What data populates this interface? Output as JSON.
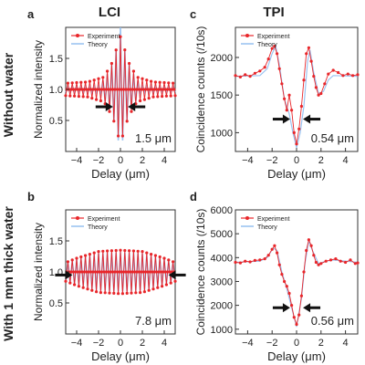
{
  "figure": {
    "columns": [
      {
        "title": "LCI"
      },
      {
        "title": "TPI"
      }
    ],
    "rows": [
      {
        "label": "Without water"
      },
      {
        "label": "With 1 mm thick water"
      }
    ]
  },
  "colors": {
    "experiment": "#e8262a",
    "theory": "#8fbcef",
    "arrow": "#111111"
  },
  "chart_data": [
    {
      "panel": "a",
      "type": "line",
      "xlabel": "Delay (μm)",
      "ylabel": "Normalized intensity",
      "xlim": [
        -5,
        5
      ],
      "ylim": [
        0,
        2
      ],
      "xticks": [
        -4,
        -2,
        0,
        2,
        4
      ],
      "yticks": [
        0.5,
        1.0,
        1.5
      ],
      "ytick_labels": [
        "0.5",
        "1.0",
        "1.5"
      ],
      "legend": [
        "Experiment",
        "Theory"
      ],
      "legend_position": "top-left",
      "annotation": "1.5 μm",
      "x_step": 0.1,
      "fringe_period": 0.4,
      "series": [
        {
          "name": "Experiment",
          "x": [
            -5,
            5
          ],
          "envelope": [
            [
              -5,
              0.1
            ],
            [
              -3,
              0.12
            ],
            [
              -1.5,
              0.2
            ],
            [
              -0.7,
              0.45
            ],
            [
              -0.3,
              0.7
            ],
            [
              0,
              0.85
            ],
            [
              0.3,
              0.7
            ],
            [
              0.7,
              0.45
            ],
            [
              1.5,
              0.2
            ],
            [
              3,
              0.12
            ],
            [
              5,
              0.1
            ]
          ]
        },
        {
          "name": "Theory",
          "x": [
            -5,
            5
          ],
          "envelope": [
            [
              -5,
              0.05
            ],
            [
              -2,
              0.05
            ],
            [
              -1,
              0.3
            ],
            [
              -0.5,
              0.55
            ],
            [
              0,
              1.0
            ],
            [
              0.5,
              0.55
            ],
            [
              1,
              0.3
            ],
            [
              2,
              0.05
            ],
            [
              5,
              0.05
            ]
          ]
        }
      ],
      "arrows": {
        "left_x": -1.1,
        "right_x": 1.1,
        "y": 0.72
      }
    },
    {
      "panel": "b",
      "type": "line",
      "xlabel": "Delay (μm)",
      "ylabel": "Normalized intensity",
      "xlim": [
        -5,
        5
      ],
      "ylim": [
        0,
        2
      ],
      "xticks": [
        -4,
        -2,
        0,
        2,
        4
      ],
      "yticks": [
        0.5,
        1.0,
        1.5
      ],
      "ytick_labels": [
        "0.5",
        "1.0",
        "1.5"
      ],
      "legend": [
        "Experiment",
        "Theory"
      ],
      "legend_position": "top-left",
      "annotation": "7.8 μm",
      "x_step": 0.1,
      "fringe_period": 0.4,
      "series": [
        {
          "name": "Experiment",
          "x": [
            -5,
            5
          ],
          "envelope": [
            [
              -5,
              0.15
            ],
            [
              -4,
              0.22
            ],
            [
              -2,
              0.33
            ],
            [
              0,
              0.35
            ],
            [
              2,
              0.33
            ],
            [
              4,
              0.22
            ],
            [
              5,
              0.15
            ]
          ]
        },
        {
          "name": "Theory",
          "x": [
            -5,
            5
          ],
          "envelope": [
            [
              -5,
              0.15
            ],
            [
              -4,
              0.2
            ],
            [
              -2,
              0.3
            ],
            [
              0,
              0.32
            ],
            [
              2,
              0.3
            ],
            [
              4,
              0.2
            ],
            [
              5,
              0.15
            ]
          ]
        }
      ],
      "arrows": {
        "left_x": -4.8,
        "right_x": 4.8,
        "y": 0.95
      }
    },
    {
      "panel": "c",
      "type": "line",
      "xlabel": "Delay (μm)",
      "ylabel": "Coincidence counts (/10s)",
      "xlim": [
        -5,
        5
      ],
      "ylim": [
        750,
        2400
      ],
      "xticks": [
        -4,
        -2,
        0,
        2,
        4
      ],
      "yticks": [
        1000,
        1500,
        2000
      ],
      "ytick_labels": [
        "1000",
        "1500",
        "2000"
      ],
      "legend": [
        "Experiment",
        "Theory"
      ],
      "legend_position": "top-left",
      "annotation": "0.54 μm",
      "series": [
        {
          "name": "Experiment",
          "points": [
            [
              -5.0,
              1760
            ],
            [
              -4.6,
              1740
            ],
            [
              -4.2,
              1770
            ],
            [
              -3.8,
              1750
            ],
            [
              -3.4,
              1790
            ],
            [
              -3.0,
              1820
            ],
            [
              -2.6,
              1870
            ],
            [
              -2.3,
              1980
            ],
            [
              -2.0,
              2120
            ],
            [
              -1.8,
              2150
            ],
            [
              -1.6,
              2050
            ],
            [
              -1.4,
              1850
            ],
            [
              -1.2,
              1650
            ],
            [
              -1.0,
              1450
            ],
            [
              -0.8,
              1300
            ],
            [
              -0.6,
              1500
            ],
            [
              -0.4,
              1300
            ],
            [
              -0.2,
              1000
            ],
            [
              0.0,
              850
            ],
            [
              0.2,
              1050
            ],
            [
              0.4,
              1350
            ],
            [
              0.6,
              1700
            ],
            [
              0.8,
              2050
            ],
            [
              1.0,
              2130
            ],
            [
              1.2,
              1950
            ],
            [
              1.4,
              1750
            ],
            [
              1.6,
              1600
            ],
            [
              1.8,
              1500
            ],
            [
              2.0,
              1520
            ],
            [
              2.3,
              1650
            ],
            [
              2.6,
              1780
            ],
            [
              3.0,
              1830
            ],
            [
              3.4,
              1800
            ],
            [
              3.8,
              1760
            ],
            [
              4.2,
              1780
            ],
            [
              4.6,
              1760
            ],
            [
              5.0,
              1770
            ]
          ]
        },
        {
          "name": "Theory",
          "points": [
            [
              -5.0,
              1750
            ],
            [
              -3.0,
              1760
            ],
            [
              -2.4,
              1850
            ],
            [
              -2.0,
              2050
            ],
            [
              -1.7,
              2150
            ],
            [
              -1.4,
              1900
            ],
            [
              -1.0,
              1450
            ],
            [
              -0.6,
              1250
            ],
            [
              -0.3,
              1000
            ],
            [
              0.0,
              800
            ],
            [
              0.3,
              1000
            ],
            [
              0.6,
              1350
            ],
            [
              0.9,
              1950
            ],
            [
              1.1,
              2100
            ],
            [
              1.4,
              1800
            ],
            [
              1.8,
              1520
            ],
            [
              2.2,
              1550
            ],
            [
              2.6,
              1700
            ],
            [
              3.0,
              1760
            ],
            [
              5.0,
              1750
            ]
          ]
        }
      ],
      "arrows": {
        "left_x": -0.9,
        "right_x": 0.9,
        "y": 1180
      }
    },
    {
      "panel": "d",
      "type": "line",
      "xlabel": "Delay (μm)",
      "ylabel": "Coincidence counts (/10s)",
      "xlim": [
        -5,
        5
      ],
      "ylim": [
        800,
        6000
      ],
      "xticks": [
        -4,
        -2,
        0,
        2,
        4
      ],
      "yticks": [
        1000,
        2000,
        3000,
        4000,
        5000,
        6000
      ],
      "ytick_labels": [
        "1000",
        "2000",
        "3000",
        "4000",
        "5000",
        "6000"
      ],
      "legend": [
        "Experiment",
        "Theory"
      ],
      "legend_position": "top-left",
      "annotation": "0.56 μm",
      "series": [
        {
          "name": "Experiment",
          "points": [
            [
              -5.0,
              3800
            ],
            [
              -4.6,
              3780
            ],
            [
              -4.2,
              3850
            ],
            [
              -3.8,
              3820
            ],
            [
              -3.4,
              3880
            ],
            [
              -3.0,
              3900
            ],
            [
              -2.6,
              3950
            ],
            [
              -2.3,
              4100
            ],
            [
              -2.0,
              4350
            ],
            [
              -1.8,
              4500
            ],
            [
              -1.6,
              4200
            ],
            [
              -1.4,
              3700
            ],
            [
              -1.2,
              3300
            ],
            [
              -1.0,
              3000
            ],
            [
              -0.8,
              2800
            ],
            [
              -0.6,
              2500
            ],
            [
              -0.4,
              2000
            ],
            [
              -0.2,
              1500
            ],
            [
              0.0,
              1200
            ],
            [
              0.2,
              1600
            ],
            [
              0.4,
              2400
            ],
            [
              0.6,
              3400
            ],
            [
              0.8,
              4300
            ],
            [
              1.0,
              4750
            ],
            [
              1.2,
              4500
            ],
            [
              1.4,
              4100
            ],
            [
              1.6,
              3800
            ],
            [
              1.8,
              3700
            ],
            [
              2.0,
              3750
            ],
            [
              2.4,
              3850
            ],
            [
              2.8,
              3900
            ],
            [
              3.2,
              3950
            ],
            [
              3.6,
              3850
            ],
            [
              4.0,
              3800
            ],
            [
              4.4,
              3900
            ],
            [
              4.8,
              3750
            ],
            [
              5.0,
              3780
            ]
          ]
        },
        {
          "name": "Theory",
          "points": [
            [
              -5.0,
              3800
            ],
            [
              -3.0,
              3850
            ],
            [
              -2.4,
              4000
            ],
            [
              -1.9,
              4400
            ],
            [
              -1.6,
              4300
            ],
            [
              -1.2,
              3400
            ],
            [
              -0.8,
              2700
            ],
            [
              -0.4,
              1900
            ],
            [
              0.0,
              1100
            ],
            [
              0.4,
              2300
            ],
            [
              0.7,
              3800
            ],
            [
              1.0,
              4700
            ],
            [
              1.3,
              4300
            ],
            [
              1.8,
              3750
            ],
            [
              2.4,
              3850
            ],
            [
              3.0,
              3900
            ],
            [
              5.0,
              3800
            ]
          ]
        }
      ],
      "arrows": {
        "left_x": -0.9,
        "right_x": 0.9,
        "y": 1900
      }
    }
  ]
}
